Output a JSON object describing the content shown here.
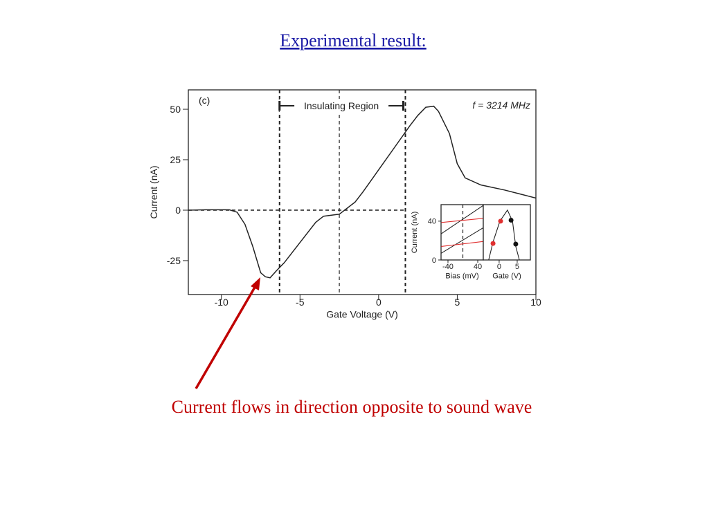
{
  "title": "Experimental result:",
  "caption": "Current flows in direction opposite to sound wave",
  "chart_data": [
    {
      "type": "line",
      "xlabel": "Gate Voltage (V)",
      "ylabel": "Current (nA)",
      "panel_label": "(c)",
      "region_label": "Insulating Region",
      "frequency_label": "f = 3214 MHz",
      "xlim": [
        -12.1,
        10
      ],
      "ylim": [
        -41.8,
        59.6
      ],
      "xticks": [
        -10,
        -5,
        0,
        5,
        10
      ],
      "yticks": [
        -25,
        0,
        25,
        50
      ],
      "x": [
        -12.1,
        -11,
        -9.5,
        -9,
        -8.5,
        -8,
        -7.5,
        -7.2,
        -6.9,
        -6.5,
        -6,
        -5,
        -4,
        -3.5,
        -3,
        -2.5,
        -2,
        -1.5,
        -1,
        0,
        1,
        2,
        2.5,
        3,
        3.5,
        3.8,
        4.5,
        5,
        5.5,
        6.5,
        8,
        9,
        10
      ],
      "series": [
        {
          "color": "#222222",
          "values": [
            0,
            0.2,
            0.2,
            -1,
            -7,
            -18,
            -31,
            -33,
            -33.5,
            -30,
            -26,
            -16,
            -6,
            -3,
            -2.5,
            -2,
            1,
            4,
            9,
            20,
            31,
            42,
            47,
            51,
            51.5,
            49,
            38,
            23,
            16,
            12.5,
            10,
            8,
            6
          ]
        }
      ],
      "vlines": [
        -6.3,
        -2.5,
        1.7
      ],
      "hline": 0
    },
    {
      "type": "line",
      "xlabel": "Bias (mV)",
      "ylabel": "Current (nA)",
      "xlim": [
        -58.6,
        54.9
      ],
      "ylim": [
        0,
        57
      ],
      "xticks": [
        -40,
        40
      ],
      "yticks": [
        0,
        40
      ],
      "x": [
        -58,
        54
      ],
      "series": [
        {
          "color": "#222222",
          "values": [
            27,
            56
          ]
        },
        {
          "color": "#222222",
          "values": [
            7,
            33
          ]
        },
        {
          "color": "#e03030",
          "values": [
            38.6,
            42.9
          ]
        },
        {
          "color": "#e03030",
          "values": [
            14,
            19
          ]
        }
      ],
      "vlines": [
        0
      ]
    },
    {
      "type": "line",
      "xlabel": "Gate (V)",
      "xlim": [
        -4.4,
        8.65
      ],
      "ylim": [
        0,
        57
      ],
      "xticks": [
        0,
        5
      ],
      "x": [
        -2.9,
        -1.7,
        0.2,
        2.3,
        3.7,
        4.6,
        5.6
      ],
      "series": [
        {
          "color": "#222222",
          "values": [
            0,
            18.6,
            40,
            51.4,
            40,
            14,
            0
          ]
        }
      ],
      "markers": [
        {
          "x": -1.7,
          "y": 17,
          "color": "#e03030"
        },
        {
          "x": 0.4,
          "y": 40,
          "color": "#e03030"
        },
        {
          "x": 3.3,
          "y": 41,
          "color": "#111111"
        },
        {
          "x": 4.6,
          "y": 16.4,
          "color": "#111111"
        }
      ]
    }
  ]
}
